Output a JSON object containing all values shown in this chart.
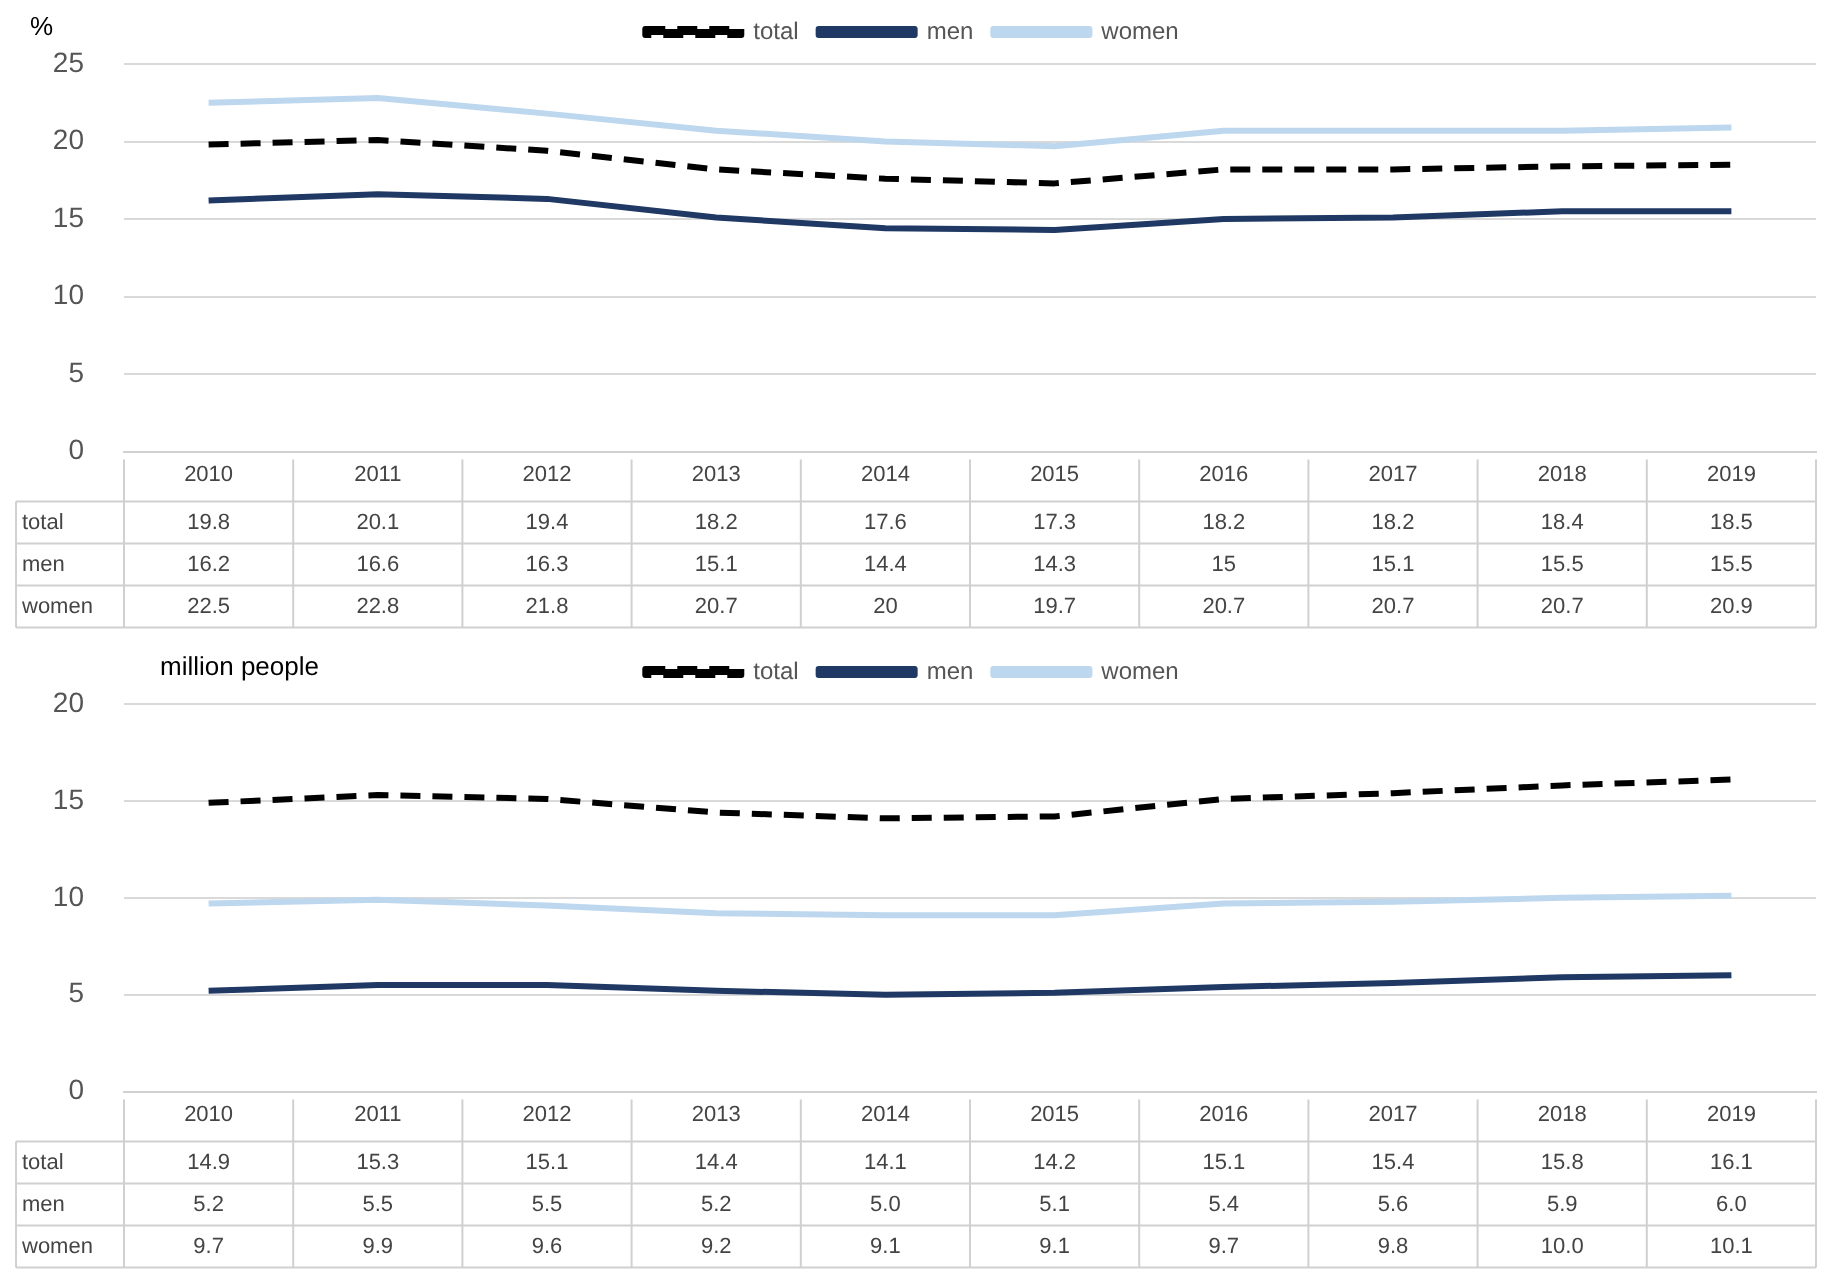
{
  "chart_data": [
    {
      "type": "line",
      "ylabel": "%",
      "categories": [
        "2010",
        "2011",
        "2012",
        "2013",
        "2014",
        "2015",
        "2016",
        "2017",
        "2018",
        "2019"
      ],
      "series": [
        {
          "name": "total",
          "color": "#000000",
          "line_style": "dashed",
          "values": [
            19.8,
            20.1,
            19.4,
            18.2,
            17.6,
            17.3,
            18.2,
            18.2,
            18.4,
            18.5
          ]
        },
        {
          "name": "men",
          "color": "#1f3864",
          "values": [
            16.2,
            16.6,
            16.3,
            15.1,
            14.4,
            14.3,
            15,
            15.1,
            15.5,
            15.5
          ]
        },
        {
          "name": "women",
          "color": "#bdd7ee",
          "values": [
            22.5,
            22.8,
            21.8,
            20.7,
            20,
            19.7,
            20.7,
            20.7,
            20.7,
            20.9
          ]
        }
      ],
      "ylim": [
        0,
        25
      ],
      "yticks": [
        0,
        5,
        10,
        15,
        20,
        25
      ],
      "grid": "y",
      "legend": "top",
      "marker": "none",
      "data_labels": true
    },
    {
      "type": "line",
      "ylabel": "million people",
      "categories": [
        "2010",
        "2011",
        "2012",
        "2013",
        "2014",
        "2015",
        "2016",
        "2017",
        "2018",
        "2019"
      ],
      "series": [
        {
          "name": "total",
          "color": "#000000",
          "line_style": "dashed",
          "values": [
            14.9,
            15.3,
            15.1,
            14.4,
            14.1,
            14.2,
            15.1,
            15.4,
            15.8,
            16.1
          ],
          "value_labels": [
            "14.9",
            "15.3",
            "15.1",
            "14.4",
            "14.1",
            "14.2",
            "15.1",
            "15.4",
            "15.8",
            "16.1"
          ]
        },
        {
          "name": "men",
          "color": "#1f3864",
          "values": [
            5.2,
            5.5,
            5.5,
            5.2,
            5.0,
            5.1,
            5.4,
            5.6,
            5.9,
            6.0
          ],
          "value_labels": [
            "5.2",
            "5.5",
            "5.5",
            "5.2",
            "5.0",
            "5.1",
            "5.4",
            "5.6",
            "5.9",
            "6.0"
          ]
        },
        {
          "name": "women",
          "color": "#bdd7ee",
          "values": [
            9.7,
            9.9,
            9.6,
            9.2,
            9.1,
            9.1,
            9.7,
            9.8,
            10.0,
            10.1
          ],
          "value_labels": [
            "9.7",
            "9.9",
            "9.6",
            "9.2",
            "9.1",
            "9.1",
            "9.7",
            "9.8",
            "10.0",
            "10.1"
          ]
        }
      ],
      "ylim": [
        0,
        20
      ],
      "yticks": [
        0,
        5,
        10,
        15,
        20
      ],
      "grid": "y",
      "legend": "top",
      "marker": "none"
    }
  ]
}
